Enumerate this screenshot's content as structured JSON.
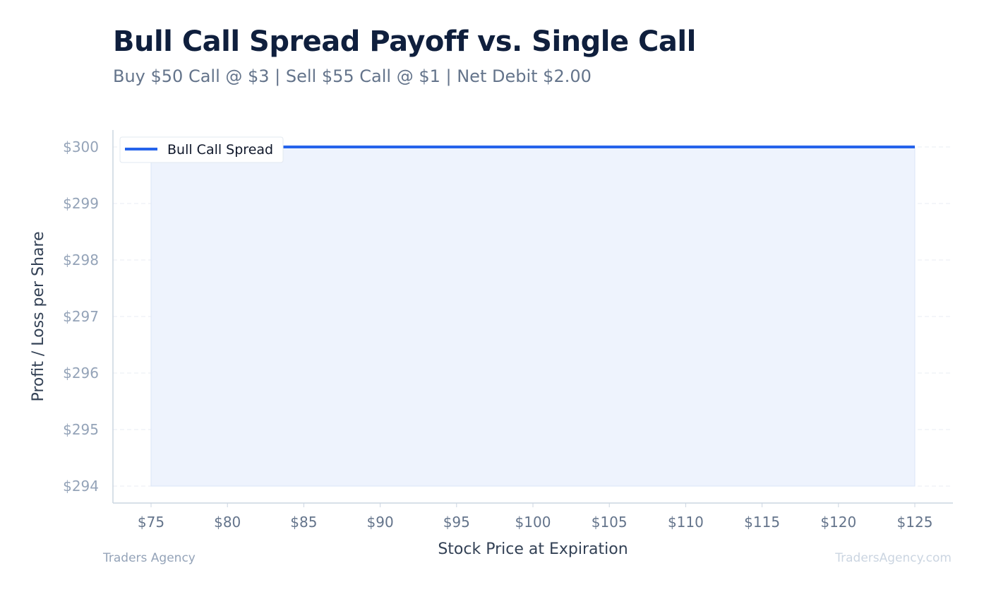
{
  "title": "Bull Call Spread Payoff vs. Single Call",
  "subtitle": "Buy $50 Call @ $3 | Sell $55 Call @ $1 | Net Debit $2.00",
  "footer": {
    "left": "Traders Agency",
    "right": "TradersAgency.com"
  },
  "colors": {
    "line": "#2563eb",
    "fill": "#eef3fd",
    "grid": "#e8edf3",
    "axis": "#cbd5e1",
    "y_tick": "#94a3b8",
    "x_tick": "#64748b"
  },
  "chart_data": {
    "type": "line",
    "xlabel": "Stock Price at Expiration",
    "ylabel": "Profit / Loss per Share",
    "xlim": [
      75,
      125
    ],
    "ylim": [
      294,
      300
    ],
    "x_ticks": [
      75,
      80,
      85,
      90,
      95,
      100,
      105,
      110,
      115,
      120,
      125
    ],
    "y_ticks": [
      294,
      295,
      296,
      297,
      298,
      299,
      300
    ],
    "x_tick_labels": [
      "$75",
      "$80",
      "$85",
      "$90",
      "$95",
      "$100",
      "$105",
      "$110",
      "$115",
      "$120",
      "$125"
    ],
    "y_tick_labels": [
      "$294",
      "$295",
      "$296",
      "$297",
      "$298",
      "$299",
      "$300"
    ],
    "grid": true,
    "legend_position": "top-left",
    "series": [
      {
        "name": "Bull Call Spread",
        "x": [
          75,
          125
        ],
        "y": [
          300,
          300
        ],
        "fill_to": 294
      }
    ]
  }
}
